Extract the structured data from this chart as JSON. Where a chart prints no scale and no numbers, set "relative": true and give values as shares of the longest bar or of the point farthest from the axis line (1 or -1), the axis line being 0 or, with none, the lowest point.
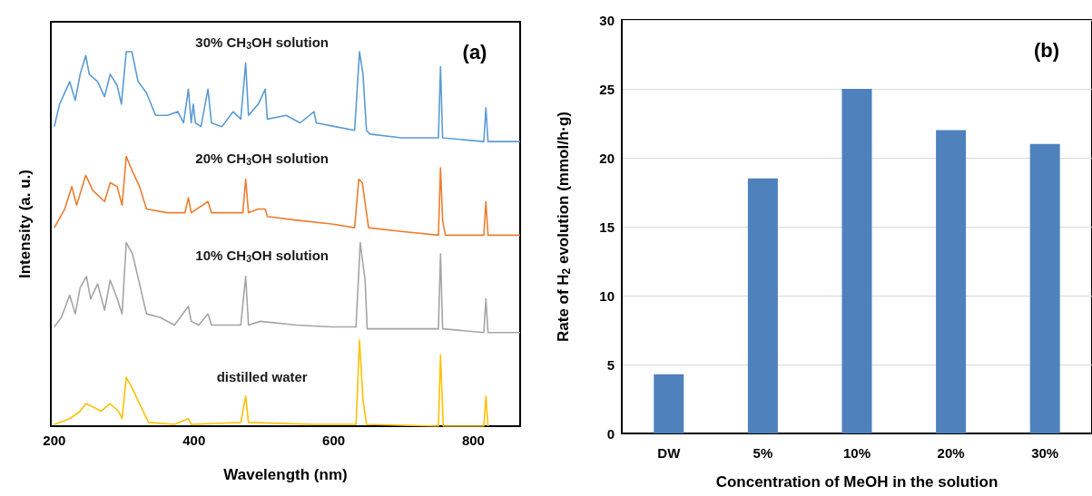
{
  "chart_data": [
    {
      "type": "line",
      "relative": true,
      "xlabel": "Wavelength (nm)",
      "ylabel": "Intensity (a. u.)",
      "xlim": [
        195,
        867
      ],
      "xticks": [
        200,
        400,
        600,
        800
      ],
      "grid": false,
      "annotations": [
        "(a)"
      ],
      "series": [
        {
          "name": "30% CH$_{3}$OH solution",
          "color": "#5b9bd5",
          "x": [
            200,
            207.5,
            222,
            230,
            237,
            245,
            250,
            262,
            272,
            280,
            290,
            296,
            303,
            311,
            320,
            332,
            345,
            362,
            377,
            385,
            392,
            396,
            399,
            402,
            410,
            420,
            425,
            440,
            456,
            467,
            474,
            478,
            492,
            502,
            505,
            532,
            552,
            572,
            575,
            602,
            630,
            637,
            642,
            647,
            652,
            697,
            750,
            753,
            756,
            815,
            818,
            821,
            867
          ],
          "values": [
            0.8,
            0.86,
            0.92,
            0.87,
            0.94,
            0.99,
            0.94,
            0.92,
            0.88,
            0.94,
            0.91,
            0.86,
            1.0,
            1.0,
            0.92,
            0.89,
            0.83,
            0.83,
            0.84,
            0.81,
            0.9,
            0.81,
            0.86,
            0.81,
            0.8,
            0.9,
            0.81,
            0.8,
            0.84,
            0.82,
            0.97,
            0.83,
            0.86,
            0.9,
            0.82,
            0.83,
            0.81,
            0.84,
            0.81,
            0.8,
            0.79,
            1.0,
            0.94,
            0.79,
            0.78,
            0.77,
            0.77,
            0.96,
            0.77,
            0.76,
            0.85,
            0.76,
            0.76
          ]
        },
        {
          "name": "20% CH$_{3}$OH solution",
          "color": "#ed7d31",
          "x": [
            200,
            215,
            225,
            232,
            245,
            255,
            272,
            280,
            290,
            297,
            303,
            312,
            322,
            332,
            362,
            387,
            392,
            396,
            420,
            425,
            452,
            470,
            474,
            478,
            492,
            502,
            505,
            547,
            597,
            630,
            636,
            641,
            650,
            697,
            750,
            753,
            756,
            760,
            815,
            818,
            821,
            867
          ],
          "values": [
            0.53,
            0.58,
            0.64,
            0.59,
            0.67,
            0.63,
            0.6,
            0.65,
            0.64,
            0.59,
            0.72,
            0.68,
            0.64,
            0.58,
            0.57,
            0.57,
            0.61,
            0.57,
            0.6,
            0.57,
            0.57,
            0.57,
            0.66,
            0.57,
            0.58,
            0.58,
            0.56,
            0.55,
            0.54,
            0.53,
            0.66,
            0.65,
            0.53,
            0.52,
            0.51,
            0.69,
            0.55,
            0.51,
            0.51,
            0.6,
            0.51,
            0.51
          ]
        },
        {
          "name": "10% CH$_{3}$OH solution",
          "color": "#a5a5a5",
          "x": [
            200,
            210,
            222,
            230,
            237,
            246,
            252,
            262,
            272,
            280,
            290,
            297,
            303,
            312,
            322,
            332,
            352,
            372,
            392,
            396,
            407,
            420,
            425,
            467,
            474,
            478,
            495,
            547,
            597,
            632,
            638,
            645,
            648,
            697,
            750,
            753,
            756,
            815,
            818,
            821,
            867
          ],
          "values": [
            0.265,
            0.29,
            0.35,
            0.3,
            0.37,
            0.4,
            0.34,
            0.38,
            0.31,
            0.39,
            0.34,
            0.3,
            0.49,
            0.46,
            0.38,
            0.3,
            0.29,
            0.27,
            0.32,
            0.28,
            0.27,
            0.3,
            0.27,
            0.27,
            0.4,
            0.27,
            0.28,
            0.27,
            0.265,
            0.265,
            0.49,
            0.39,
            0.26,
            0.26,
            0.26,
            0.46,
            0.26,
            0.25,
            0.34,
            0.25,
            0.25
          ]
        },
        {
          "name": "distilled water",
          "color": "#ffc000",
          "x": [
            200,
            222,
            237,
            245,
            257,
            267,
            280,
            292,
            297,
            303,
            312,
            322,
            335,
            372,
            392,
            396,
            467,
            474,
            478,
            572,
            632,
            637,
            642,
            647,
            750,
            753,
            757,
            815,
            818,
            821
          ],
          "values": [
            0.005,
            0.02,
            0.04,
            0.06,
            0.05,
            0.04,
            0.06,
            0.04,
            0.02,
            0.13,
            0.1,
            0.06,
            0.01,
            0.005,
            0.02,
            0.005,
            0.01,
            0.08,
            0.01,
            0.005,
            0.005,
            0.23,
            0.07,
            0.005,
            0,
            0.19,
            0,
            0,
            0.08,
            0
          ]
        }
      ]
    },
    {
      "type": "bar",
      "xlabel": "Concentration of MeOH in the solution",
      "ylabel": "Rate of H$_{2}$ evolution (mmol/h·g)",
      "categories": [
        "DW",
        "5%",
        "10%",
        "20%",
        "30%"
      ],
      "values": [
        4.3,
        18.5,
        25,
        22,
        21
      ],
      "color": "#4f81bd",
      "ylim": [
        0,
        30
      ],
      "yticks": [
        0,
        5,
        10,
        15,
        20,
        25,
        30
      ],
      "grid": "y",
      "annotations": [
        "(b)"
      ]
    }
  ]
}
